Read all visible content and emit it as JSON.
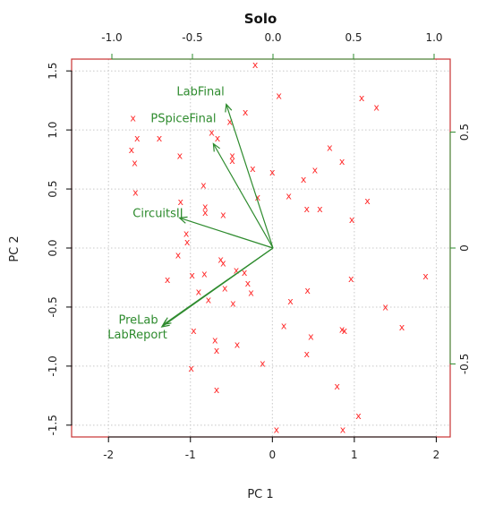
{
  "chart_data": {
    "type": "scatter",
    "title": "Solo",
    "xlabel": "PC 1",
    "ylabel": "PC 2",
    "grid": true,
    "colors": {
      "observations": "#ff2a2a",
      "loadings": "#2e8b2e",
      "box": "#c83232",
      "grid": "#c8c8c8"
    },
    "primary_axes": {
      "xlim": [
        -2.45,
        2.17
      ],
      "ylim": [
        -1.6,
        1.6
      ],
      "xticks": [
        -2,
        -1,
        0,
        1,
        2
      ],
      "xtick_labels": [
        "-2",
        "-1",
        "0",
        "1",
        "2"
      ],
      "yticks": [
        -1.5,
        -1.0,
        -0.5,
        0.0,
        0.5,
        1.0,
        1.5
      ],
      "ytick_labels": [
        "-1.5",
        "-1.0",
        "-0.5",
        "0.0",
        "0.5",
        "1.0",
        "1.5"
      ]
    },
    "secondary_axes": {
      "xlim": [
        -1.25,
        1.1
      ],
      "ylim": [
        -0.815,
        0.815
      ],
      "xticks": [
        -1.0,
        -0.5,
        0.0,
        0.5,
        1.0
      ],
      "xtick_labels": [
        "-1.0",
        "-0.5",
        "0.0",
        "0.5",
        "1.0"
      ],
      "yticks": [
        -0.5,
        0.0,
        0.5
      ],
      "ytick_labels": [
        "-0.5",
        "0",
        "0.5"
      ]
    },
    "observation_marker": "x",
    "observations": [
      [
        -0.21,
        1.55
      ],
      [
        -1.7,
        1.1
      ],
      [
        -1.65,
        0.93
      ],
      [
        -1.72,
        0.83
      ],
      [
        -1.68,
        0.72
      ],
      [
        -1.38,
        0.93
      ],
      [
        -1.67,
        0.47
      ],
      [
        0.08,
        1.29
      ],
      [
        -0.33,
        1.15
      ],
      [
        -0.52,
        1.07
      ],
      [
        -0.67,
        0.93
      ],
      [
        -0.74,
        0.98
      ],
      [
        -0.49,
        0.78
      ],
      [
        -0.49,
        0.74
      ],
      [
        -1.13,
        0.78
      ],
      [
        -0.24,
        0.67
      ],
      [
        0.0,
        0.64
      ],
      [
        -0.84,
        0.53
      ],
      [
        -0.82,
        0.35
      ],
      [
        -1.12,
        0.39
      ],
      [
        -0.82,
        0.3
      ],
      [
        -1.05,
        0.12
      ],
      [
        -1.04,
        0.05
      ],
      [
        -0.6,
        0.28
      ],
      [
        -0.18,
        0.43
      ],
      [
        -0.6,
        -0.13
      ],
      [
        -1.15,
        -0.06
      ],
      [
        -1.28,
        -0.27
      ],
      [
        -0.98,
        -0.23
      ],
      [
        -0.63,
        -0.1
      ],
      [
        -0.44,
        -0.19
      ],
      [
        -0.34,
        -0.21
      ],
      [
        -0.3,
        -0.3
      ],
      [
        -0.26,
        -0.38
      ],
      [
        -0.83,
        -0.22
      ],
      [
        -0.78,
        -0.44
      ],
      [
        -0.9,
        -0.37
      ],
      [
        -0.58,
        -0.34
      ],
      [
        -0.48,
        -0.47
      ],
      [
        -0.96,
        -0.7
      ],
      [
        -0.7,
        -0.78
      ],
      [
        -0.68,
        -0.87
      ],
      [
        -0.43,
        -0.82
      ],
      [
        -0.12,
        -0.98
      ],
      [
        -0.99,
        -1.02
      ],
      [
        -0.68,
        -1.2
      ],
      [
        0.22,
        -0.45
      ],
      [
        0.14,
        -0.66
      ],
      [
        0.43,
        -0.36
      ],
      [
        0.47,
        -0.75
      ],
      [
        0.42,
        -0.9
      ],
      [
        0.79,
        -1.17
      ],
      [
        0.85,
        -0.69
      ],
      [
        0.88,
        -0.7
      ],
      [
        0.96,
        -0.26
      ],
      [
        1.38,
        -0.5
      ],
      [
        1.58,
        -0.67
      ],
      [
        1.87,
        -0.24
      ],
      [
        1.05,
        -1.42
      ],
      [
        0.86,
        -1.54
      ],
      [
        0.05,
        -1.54
      ],
      [
        0.38,
        0.58
      ],
      [
        0.52,
        0.66
      ],
      [
        0.7,
        0.85
      ],
      [
        0.85,
        0.73
      ],
      [
        0.2,
        0.44
      ],
      [
        0.42,
        0.33
      ],
      [
        0.58,
        0.33
      ],
      [
        1.16,
        0.4
      ],
      [
        0.97,
        0.24
      ],
      [
        1.09,
        1.27
      ],
      [
        1.27,
        1.19
      ]
    ],
    "loadings": [
      {
        "name": "LabFinal",
        "x": -0.29,
        "y": 0.62,
        "label_anchor": "end",
        "label_dx": -2,
        "label_dy": -10
      },
      {
        "name": "PSpiceFinal",
        "x": -0.37,
        "y": 0.45,
        "label_anchor": "start",
        "label_dx": -70,
        "label_dy": -24
      },
      {
        "name": "CircuitsII",
        "x": -0.58,
        "y": 0.13,
        "label_anchor": "end",
        "label_dx": 4,
        "label_dy": -1
      },
      {
        "name": "PreLab",
        "x": -0.68,
        "y": -0.33,
        "label_anchor": "end",
        "label_dx": -6,
        "label_dy": -1
      },
      {
        "name": "LabReport",
        "x": -0.69,
        "y": -0.34,
        "label_anchor": "end",
        "label_dx": 6,
        "label_dy": 13
      }
    ]
  }
}
